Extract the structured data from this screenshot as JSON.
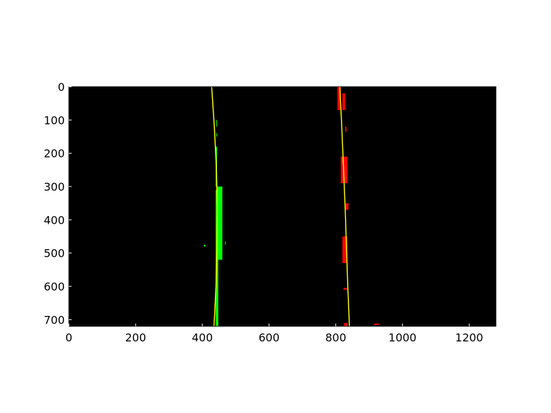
{
  "chart_data": {
    "type": "image",
    "description_of_axes": "",
    "xlim": [
      0,
      1280
    ],
    "ylim": [
      720,
      0
    ],
    "x_ticks": [
      "0",
      "200",
      "400",
      "600",
      "800",
      "1000",
      "1200"
    ],
    "y_ticks": [
      "0",
      "100",
      "200",
      "300",
      "400",
      "500",
      "600",
      "700"
    ],
    "background_color": "#000000",
    "series": [
      {
        "kind": "pixels",
        "color": "#00ff00",
        "segments": [
          {
            "x": [
              440,
              448
            ],
            "y": [
              310,
              720
            ]
          },
          {
            "x": [
              445,
              460
            ],
            "y": [
              300,
              520
            ]
          },
          {
            "x": [
              440,
              444
            ],
            "y": [
              180,
              300
            ]
          },
          {
            "x": [
              442,
              444
            ],
            "y": [
              100,
              120
            ]
          },
          {
            "x": [
              442,
              444
            ],
            "y": [
              140,
              150
            ]
          },
          {
            "x": [
              405,
              410
            ],
            "y": [
              475,
              480
            ]
          },
          {
            "x": [
              468,
              470
            ],
            "y": [
              465,
              475
            ]
          }
        ]
      },
      {
        "kind": "pixels",
        "color": "#ff0000",
        "segments": [
          {
            "x": [
              805,
              815
            ],
            "y": [
              0,
              70
            ]
          },
          {
            "x": [
              820,
              828
            ],
            "y": [
              20,
              70
            ]
          },
          {
            "x": [
              815,
              835
            ],
            "y": [
              210,
              290
            ]
          },
          {
            "x": [
              820,
              835
            ],
            "y": [
              450,
              530
            ]
          },
          {
            "x": [
              825,
              835
            ],
            "y": [
              710,
              720
            ]
          },
          {
            "x": [
              830,
              838
            ],
            "y": [
              350,
              370
            ]
          },
          {
            "x": [
              828,
              832
            ],
            "y": [
              120,
              135
            ]
          },
          {
            "x": [
              823,
              835
            ],
            "y": [
              605,
              610
            ]
          },
          {
            "x": [
              915,
              930
            ],
            "y": [
              712,
              716
            ]
          }
        ]
      },
      {
        "kind": "line",
        "color": "#ffff00",
        "y": [
          0,
          120,
          240,
          360,
          480,
          600,
          720
        ],
        "x": [
          428,
          436,
          442,
          445,
          444,
          441,
          435
        ]
      },
      {
        "kind": "line",
        "color": "#ffff00",
        "y": [
          0,
          120,
          240,
          360,
          480,
          600,
          720
        ],
        "x": [
          812,
          818,
          823,
          828,
          832,
          836,
          841
        ]
      }
    ]
  }
}
